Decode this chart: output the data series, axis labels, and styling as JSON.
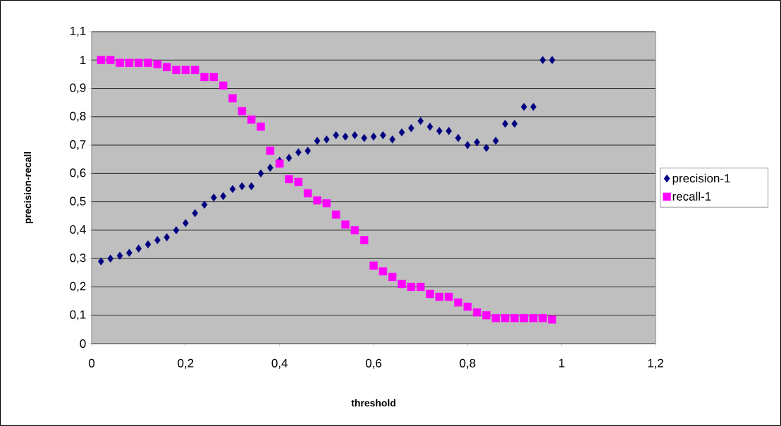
{
  "chart_data": {
    "type": "scatter",
    "xlabel": "threshold",
    "ylabel": "precision-recall",
    "x": [
      0.02,
      0.04,
      0.06,
      0.08,
      0.1,
      0.12,
      0.14,
      0.16,
      0.18,
      0.2,
      0.22,
      0.24,
      0.26,
      0.28,
      0.3,
      0.32,
      0.34,
      0.36,
      0.38,
      0.4,
      0.42,
      0.44,
      0.46,
      0.48,
      0.5,
      0.52,
      0.54,
      0.56,
      0.58,
      0.6,
      0.62,
      0.64,
      0.66,
      0.68,
      0.7,
      0.72,
      0.74,
      0.76,
      0.78,
      0.8,
      0.82,
      0.84,
      0.86,
      0.88,
      0.9,
      0.92,
      0.94,
      0.96,
      0.98
    ],
    "series": [
      {
        "name": "precision-1",
        "color": "#000080",
        "marker": "diamond",
        "values": [
          0.29,
          0.3,
          0.31,
          0.32,
          0.335,
          0.35,
          0.365,
          0.375,
          0.4,
          0.425,
          0.46,
          0.49,
          0.515,
          0.52,
          0.545,
          0.555,
          0.555,
          0.6,
          0.62,
          0.645,
          0.655,
          0.675,
          0.68,
          0.715,
          0.72,
          0.735,
          0.73,
          0.735,
          0.725,
          0.73,
          0.735,
          0.72,
          0.745,
          0.76,
          0.785,
          0.765,
          0.75,
          0.75,
          0.725,
          0.7,
          0.71,
          0.69,
          0.715,
          0.775,
          0.775,
          0.835,
          0.835,
          1.0,
          1.0
        ]
      },
      {
        "name": "recall-1",
        "color": "#ff00ff",
        "marker": "square",
        "values": [
          1.0,
          1.0,
          0.99,
          0.99,
          0.99,
          0.99,
          0.985,
          0.975,
          0.965,
          0.965,
          0.965,
          0.94,
          0.94,
          0.91,
          0.865,
          0.82,
          0.79,
          0.765,
          0.68,
          0.635,
          0.58,
          0.57,
          0.53,
          0.505,
          0.495,
          0.455,
          0.42,
          0.4,
          0.365,
          0.275,
          0.255,
          0.235,
          0.21,
          0.2,
          0.2,
          0.175,
          0.165,
          0.165,
          0.145,
          0.13,
          0.11,
          0.1,
          0.09,
          0.09,
          0.09,
          0.09,
          0.09,
          0.09,
          0.085
        ]
      }
    ],
    "xlim": [
      0,
      1.2
    ],
    "ylim": [
      0,
      1.1
    ],
    "xticks": [
      0,
      {
        "value": 0.2,
        "label": "0,2"
      },
      {
        "value": 0.4,
        "label": "0,4"
      },
      {
        "value": 0.6,
        "label": "0,6"
      },
      {
        "value": 0.8,
        "label": "0,8"
      },
      1,
      {
        "value": 1.2,
        "label": "1,2"
      }
    ],
    "yticks": [
      0,
      {
        "value": 0.1,
        "label": "0,1"
      },
      {
        "value": 0.2,
        "label": "0,2"
      },
      {
        "value": 0.3,
        "label": "0,3"
      },
      {
        "value": 0.4,
        "label": "0,4"
      },
      {
        "value": 0.5,
        "label": "0,5"
      },
      {
        "value": 0.6,
        "label": "0,6"
      },
      {
        "value": 0.7,
        "label": "0,7"
      },
      {
        "value": 0.8,
        "label": "0,8"
      },
      {
        "value": 0.9,
        "label": "0,9"
      },
      1,
      {
        "value": 1.1,
        "label": "1,1"
      }
    ],
    "grid": "y",
    "legend": "right"
  }
}
